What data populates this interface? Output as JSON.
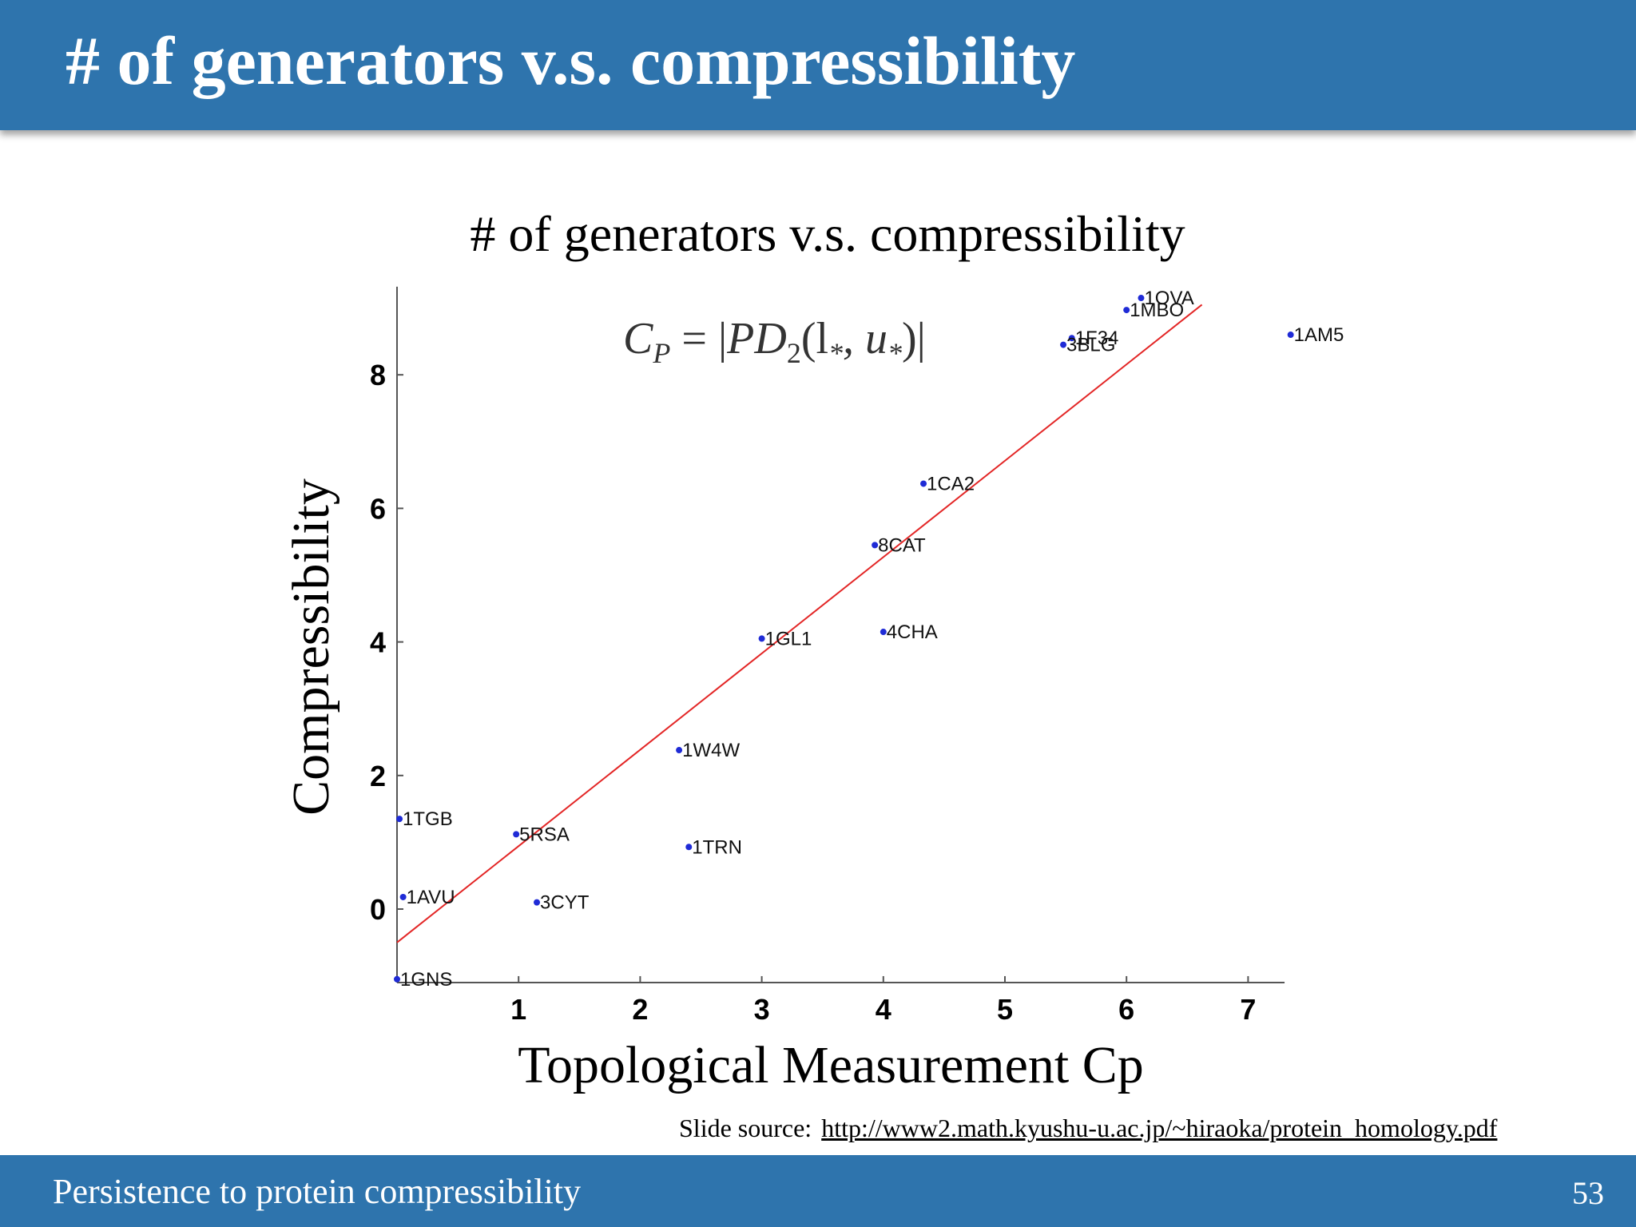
{
  "slide": {
    "title": "# of generators v.s. compressibility",
    "footer_text": "Persistence to protein compressibility",
    "page_number": "53",
    "source_label": "Slide source:",
    "source_url": "http://www2.math.kyushu-u.ac.jp/~hiraoka/protein_homology.pdf",
    "formula": {
      "lhs": "C",
      "lhs_sub": "P",
      "equals": " = |",
      "pd": "PD",
      "pd_sub": "2",
      "args": "(l",
      "args_sub1": "*",
      "mid": ", u",
      "args_sub2": "*",
      "close": ")|"
    },
    "colors": {
      "header": "#2e74ad",
      "points": "#1f2bd6",
      "fit_line": "#e32626"
    }
  },
  "chart_data": {
    "type": "scatter",
    "title": "# of generators v.s. compressibility",
    "xlabel": "Topological Measurement Cp",
    "ylabel": "Compressibility",
    "xlim": [
      0,
      7.3
    ],
    "ylim": [
      -1.1,
      9.2
    ],
    "xticks": [
      1,
      2,
      3,
      4,
      5,
      6,
      7
    ],
    "yticks": [
      0,
      2,
      4,
      6,
      8
    ],
    "grid": false,
    "points": [
      {
        "label": "1OVA",
        "x": 6.12,
        "y": 9.15
      },
      {
        "label": "1MBO",
        "x": 6.0,
        "y": 8.97
      },
      {
        "label": "1F34",
        "x": 5.55,
        "y": 8.55
      },
      {
        "label": "3BLG",
        "x": 5.48,
        "y": 8.45
      },
      {
        "label": "1AM5",
        "x": 7.35,
        "y": 8.6
      },
      {
        "label": "1CA2",
        "x": 4.33,
        "y": 6.37
      },
      {
        "label": "8CAT",
        "x": 3.93,
        "y": 5.45
      },
      {
        "label": "1GL1",
        "x": 3.0,
        "y": 4.05
      },
      {
        "label": "4CHA",
        "x": 4.0,
        "y": 4.15
      },
      {
        "label": "1W4W",
        "x": 2.32,
        "y": 2.38
      },
      {
        "label": "1TGB",
        "x": 0.02,
        "y": 1.35
      },
      {
        "label": "5RSA",
        "x": 0.98,
        "y": 1.12
      },
      {
        "label": "1TRN",
        "x": 2.4,
        "y": 0.93
      },
      {
        "label": "1AVU",
        "x": 0.05,
        "y": 0.18
      },
      {
        "label": "3CYT",
        "x": 1.15,
        "y": 0.1
      },
      {
        "label": "1GNS",
        "x": 0.0,
        "y": -1.05
      }
    ],
    "fit_line": {
      "x": [
        0,
        6.62
      ],
      "y": [
        -0.5,
        9.05
      ]
    }
  }
}
